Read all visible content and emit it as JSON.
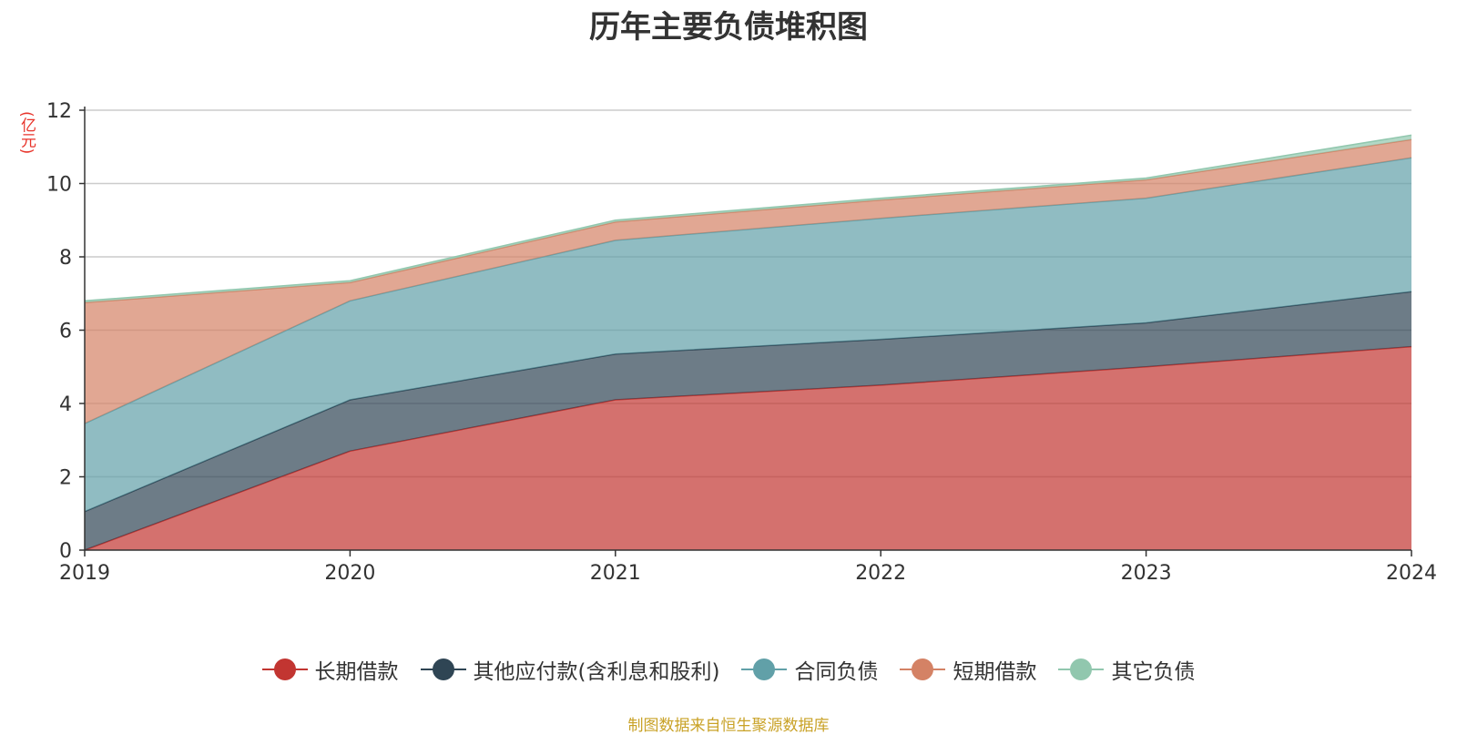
{
  "chart_data": {
    "type": "area",
    "stacked": true,
    "title": "历年主要负债堆积图",
    "y_unit_label": "(亿元)",
    "x": [
      "2019",
      "2020",
      "2021",
      "2022",
      "2023",
      "2024"
    ],
    "ylim": [
      0,
      12
    ],
    "y_ticks": [
      "0",
      "2",
      "4",
      "6",
      "8",
      "10",
      "12"
    ],
    "grid": true,
    "legend_position": "bottom",
    "series": [
      {
        "name": "长期借款",
        "values": [
          0.0,
          2.7,
          4.1,
          4.5,
          5.0,
          5.55
        ],
        "color": "#c23531"
      },
      {
        "name": "其他应付款(含利息和股利)",
        "values": [
          1.05,
          1.4,
          1.25,
          1.25,
          1.2,
          1.5
        ],
        "color": "#2f4554"
      },
      {
        "name": "合同负债",
        "values": [
          2.4,
          2.7,
          3.1,
          3.3,
          3.4,
          3.65
        ],
        "color": "#61a0a8"
      },
      {
        "name": "短期借款",
        "values": [
          3.3,
          0.5,
          0.5,
          0.5,
          0.5,
          0.5
        ],
        "color": "#d48265"
      },
      {
        "name": "其它负债",
        "values": [
          0.05,
          0.05,
          0.05,
          0.05,
          0.05,
          0.12
        ],
        "color": "#91c7ae"
      }
    ],
    "source_note": "制图数据来自恒生聚源数据库"
  }
}
